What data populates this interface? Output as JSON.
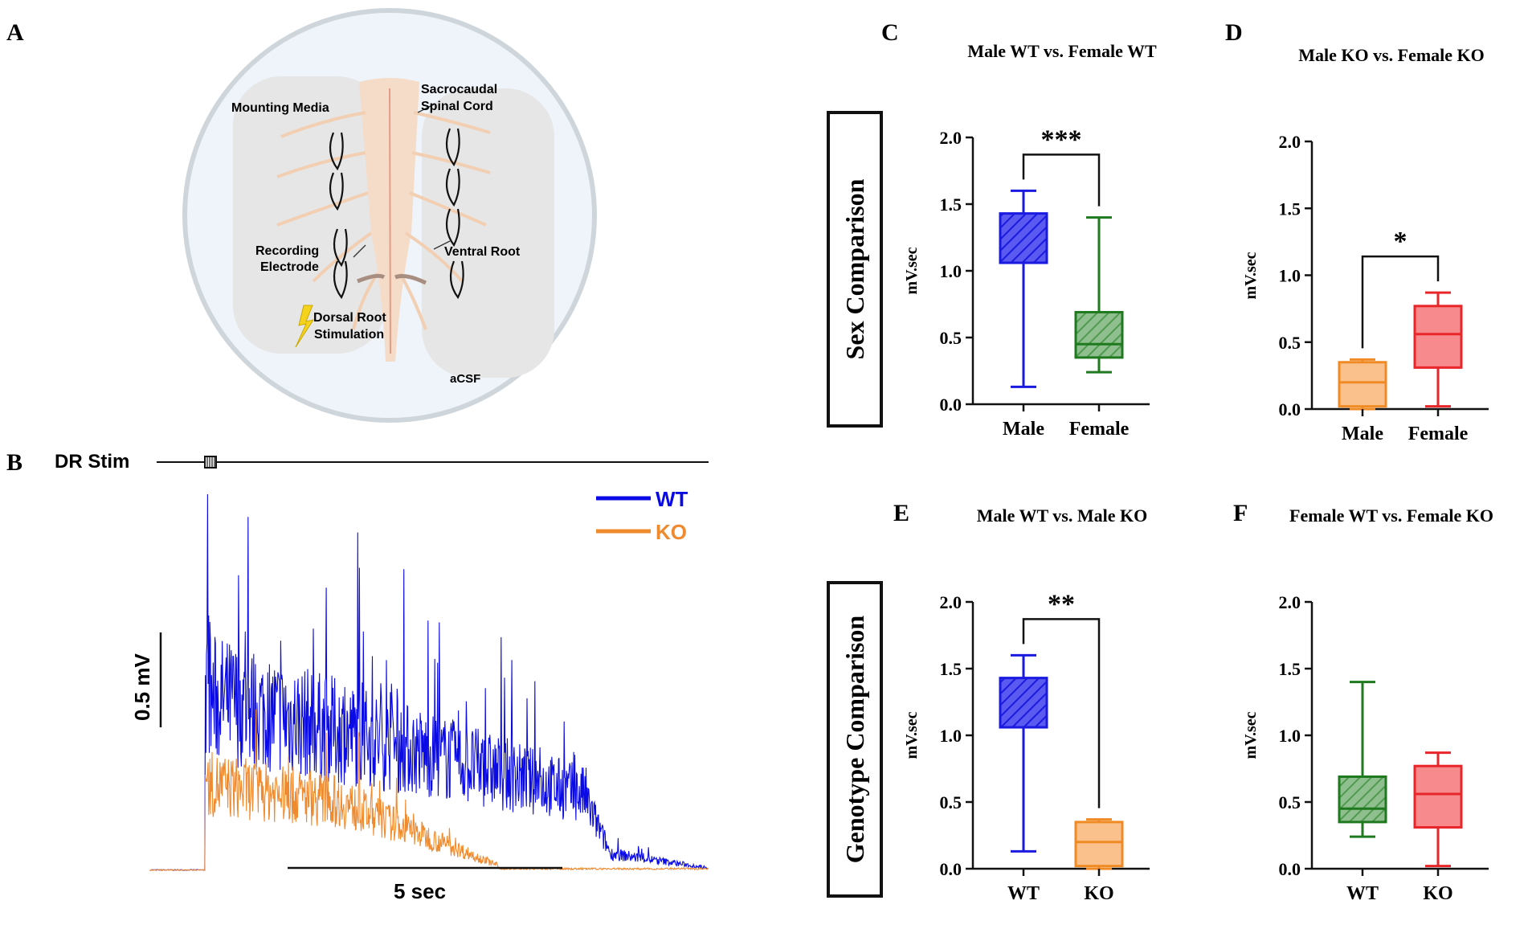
{
  "panel_letters": {
    "a": "A",
    "b": "B",
    "c": "C",
    "d": "D",
    "e": "E",
    "f": "F"
  },
  "panel_a": {
    "labels": {
      "mounting_media": "Mounting Media",
      "spinal_cord_1": "Sacrocaudal",
      "spinal_cord_2": "Spinal Cord",
      "recording_1": "Recording",
      "recording_2": "Electrode",
      "ventral_root": "Ventral Root",
      "dorsal_1": "Dorsal Root",
      "dorsal_2": "Stimulation",
      "acsf": "aCSF"
    },
    "colors": {
      "dish_fill": "#eef4f9",
      "media_fill": "#e6e6e6",
      "cord_fill": "#f5dcc8",
      "stim_icon": "#f5d31c"
    }
  },
  "panel_b": {
    "stim_label": "DR Stim",
    "legend": [
      {
        "label": "WT",
        "color": "#0a0ae6"
      },
      {
        "label": "KO",
        "color": "#ef8a2e"
      }
    ],
    "scale_y_label": "0.5 mV",
    "scale_x_label": "5 sec"
  },
  "side_labels": {
    "top": "Sex Comparison",
    "bottom": "Genotype Comparison"
  },
  "chart_data": [
    {
      "panel": "C",
      "type": "box",
      "title": "Male WT vs. Female WT",
      "ylabel": "mV.sec",
      "ylim": [
        0,
        2
      ],
      "yticks": [
        "0.0",
        "0.5",
        "1.0",
        "1.5",
        "2.0"
      ],
      "categories": [
        "Male",
        "Female"
      ],
      "boxes": [
        {
          "min": 0.13,
          "q1": 1.06,
          "median": 1.06,
          "q3": 1.43,
          "max": 1.6,
          "color": "#1a1ae0",
          "hatch": true
        },
        {
          "min": 0.24,
          "q1": 0.35,
          "median": 0.45,
          "q3": 0.69,
          "max": 1.4,
          "color": "#1f7a1f",
          "hatch": true
        }
      ],
      "significance": "***"
    },
    {
      "panel": "D",
      "type": "box",
      "title": "Male KO vs. Female KO",
      "ylabel": "mV.sec",
      "ylim": [
        0,
        2
      ],
      "yticks": [
        "0.0",
        "0.5",
        "1.0",
        "1.5",
        "2.0"
      ],
      "categories": [
        "Male",
        "Female"
      ],
      "boxes": [
        {
          "min": 0.0,
          "q1": 0.02,
          "median": 0.2,
          "q3": 0.35,
          "max": 0.37,
          "color": "#f08a24",
          "hatch": false
        },
        {
          "min": 0.02,
          "q1": 0.31,
          "median": 0.56,
          "q3": 0.77,
          "max": 0.87,
          "color": "#e8262a",
          "hatch": false
        }
      ],
      "significance": "*"
    },
    {
      "panel": "E",
      "type": "box",
      "title": "Male WT vs. Male KO",
      "ylabel": "mV.sec",
      "ylim": [
        0,
        2
      ],
      "yticks": [
        "0.0",
        "0.5",
        "1.0",
        "1.5",
        "2.0"
      ],
      "categories": [
        "WT",
        "KO"
      ],
      "boxes": [
        {
          "min": 0.13,
          "q1": 1.06,
          "median": 1.06,
          "q3": 1.43,
          "max": 1.6,
          "color": "#1a1ae0",
          "hatch": true
        },
        {
          "min": 0.0,
          "q1": 0.02,
          "median": 0.2,
          "q3": 0.35,
          "max": 0.37,
          "color": "#f08a24",
          "hatch": false
        }
      ],
      "significance": "**"
    },
    {
      "panel": "F",
      "type": "box",
      "title": "Female WT vs. Female KO",
      "ylabel": "mV.sec",
      "ylim": [
        0,
        2
      ],
      "yticks": [
        "0.0",
        "0.5",
        "1.0",
        "1.5",
        "2.0"
      ],
      "categories": [
        "WT",
        "KO"
      ],
      "boxes": [
        {
          "min": 0.24,
          "q1": 0.35,
          "median": 0.45,
          "q3": 0.69,
          "max": 1.4,
          "color": "#1f7a1f",
          "hatch": true
        },
        {
          "min": 0.02,
          "q1": 0.31,
          "median": 0.56,
          "q3": 0.77,
          "max": 0.87,
          "color": "#e8262a",
          "hatch": false
        }
      ],
      "significance": ""
    }
  ]
}
